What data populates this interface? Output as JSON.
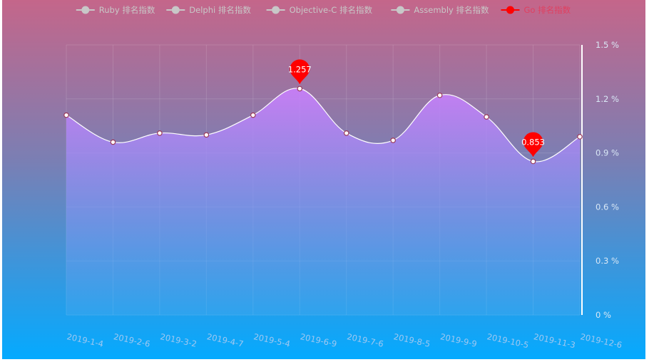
{
  "chart_data": {
    "type": "area",
    "legend": {
      "position": "top-center",
      "items": [
        {
          "name": "Ruby 排名指数",
          "active": false,
          "color": "#c8c8c8"
        },
        {
          "name": "Delphi 排名指数",
          "active": false,
          "color": "#c8c8c8"
        },
        {
          "name": "Objective-C 排名指数",
          "active": false,
          "color": "#c8c8c8"
        },
        {
          "name": "Assembly 排名指数",
          "active": false,
          "color": "#c8c8c8"
        },
        {
          "name": "Go 排名指数",
          "active": true,
          "color": "#ff0000"
        }
      ]
    },
    "categories": [
      "2019-1-4",
      "2019-2-6",
      "2019-3-2",
      "2019-4-7",
      "2019-5-4",
      "2019-6-9",
      "2019-7-6",
      "2019-8-5",
      "2019-9-9",
      "2019-10-5",
      "2019-11-3",
      "2019-12-6"
    ],
    "series": [
      {
        "name": "Go 排名指数",
        "values": [
          1.11,
          0.96,
          1.01,
          1.0,
          1.11,
          1.257,
          1.01,
          0.97,
          1.22,
          1.1,
          0.853,
          0.99
        ]
      }
    ],
    "markers": [
      {
        "label": "1.257",
        "index": 5,
        "kind": "max",
        "color": "#ff0000"
      },
      {
        "label": "0.853",
        "index": 10,
        "kind": "min",
        "color": "#ff0000"
      }
    ],
    "y_axis": {
      "position": "right",
      "ylim": [
        0,
        1.5
      ],
      "ticks": [
        0,
        0.3,
        0.6,
        0.9,
        1.2,
        1.5
      ],
      "tick_labels": [
        "0 %",
        "0.3 %",
        "0.6 %",
        "0.9 %",
        "1.2 %",
        "1.5 %"
      ]
    },
    "grid": true,
    "colors": {
      "background_top": "#c4668a",
      "background_bottom": "#04aaff",
      "area_top": "#e377ff",
      "area_bottom": "#4aa8ee",
      "line": "#ffffff",
      "marker": "#ff0000",
      "legend_inactive": "#c8c8c8",
      "x_label": "#a0c8f0",
      "y_label": "#d9e8f6"
    }
  }
}
